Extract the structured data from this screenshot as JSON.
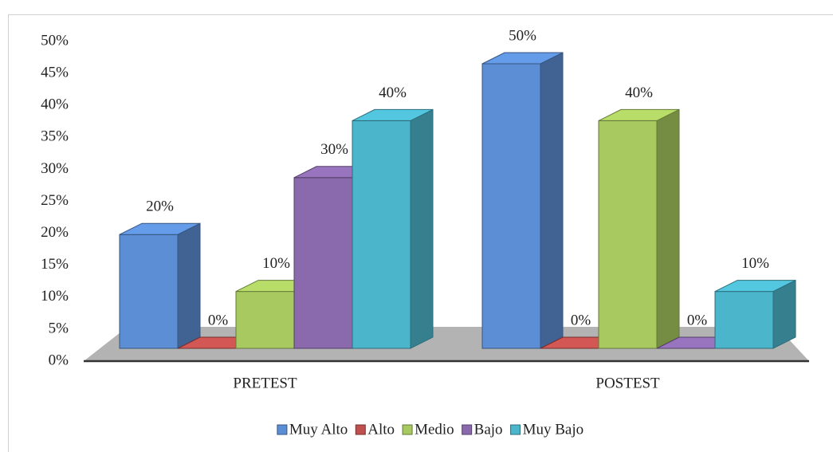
{
  "chart_data": {
    "type": "bar3d",
    "categories": [
      "PRETEST",
      "POSTEST"
    ],
    "series": [
      {
        "name": "Muy Alto",
        "color": "#5b8ed4",
        "values": [
          20,
          50
        ],
        "value_labels": [
          "20%",
          "50%"
        ]
      },
      {
        "name": "Alto",
        "color": "#c0504d",
        "values": [
          0,
          0
        ],
        "value_labels": [
          "0%",
          "0%"
        ]
      },
      {
        "name": "Medio",
        "color": "#a7c95f",
        "values": [
          10,
          40
        ],
        "value_labels": [
          "10%",
          "40%"
        ]
      },
      {
        "name": "Bajo",
        "color": "#8a6aad",
        "values": [
          30,
          0
        ],
        "value_labels": [
          "30%",
          "0%"
        ]
      },
      {
        "name": "Muy Bajo",
        "color": "#4bb5cc",
        "values": [
          40,
          10
        ],
        "value_labels": [
          "40%",
          "10%"
        ]
      }
    ],
    "ylim": [
      0,
      50
    ],
    "yticks": [
      {
        "value": 0,
        "label": "0%"
      },
      {
        "value": 5,
        "label": "5%"
      },
      {
        "value": 10,
        "label": "10%"
      },
      {
        "value": 15,
        "label": "15%"
      },
      {
        "value": 20,
        "label": "20%"
      },
      {
        "value": 25,
        "label": "25%"
      },
      {
        "value": 30,
        "label": "30%"
      },
      {
        "value": 35,
        "label": "35%"
      },
      {
        "value": 40,
        "label": "40%"
      },
      {
        "value": 45,
        "label": "45%"
      },
      {
        "value": 50,
        "label": "50%"
      }
    ],
    "legend": "bottom"
  }
}
